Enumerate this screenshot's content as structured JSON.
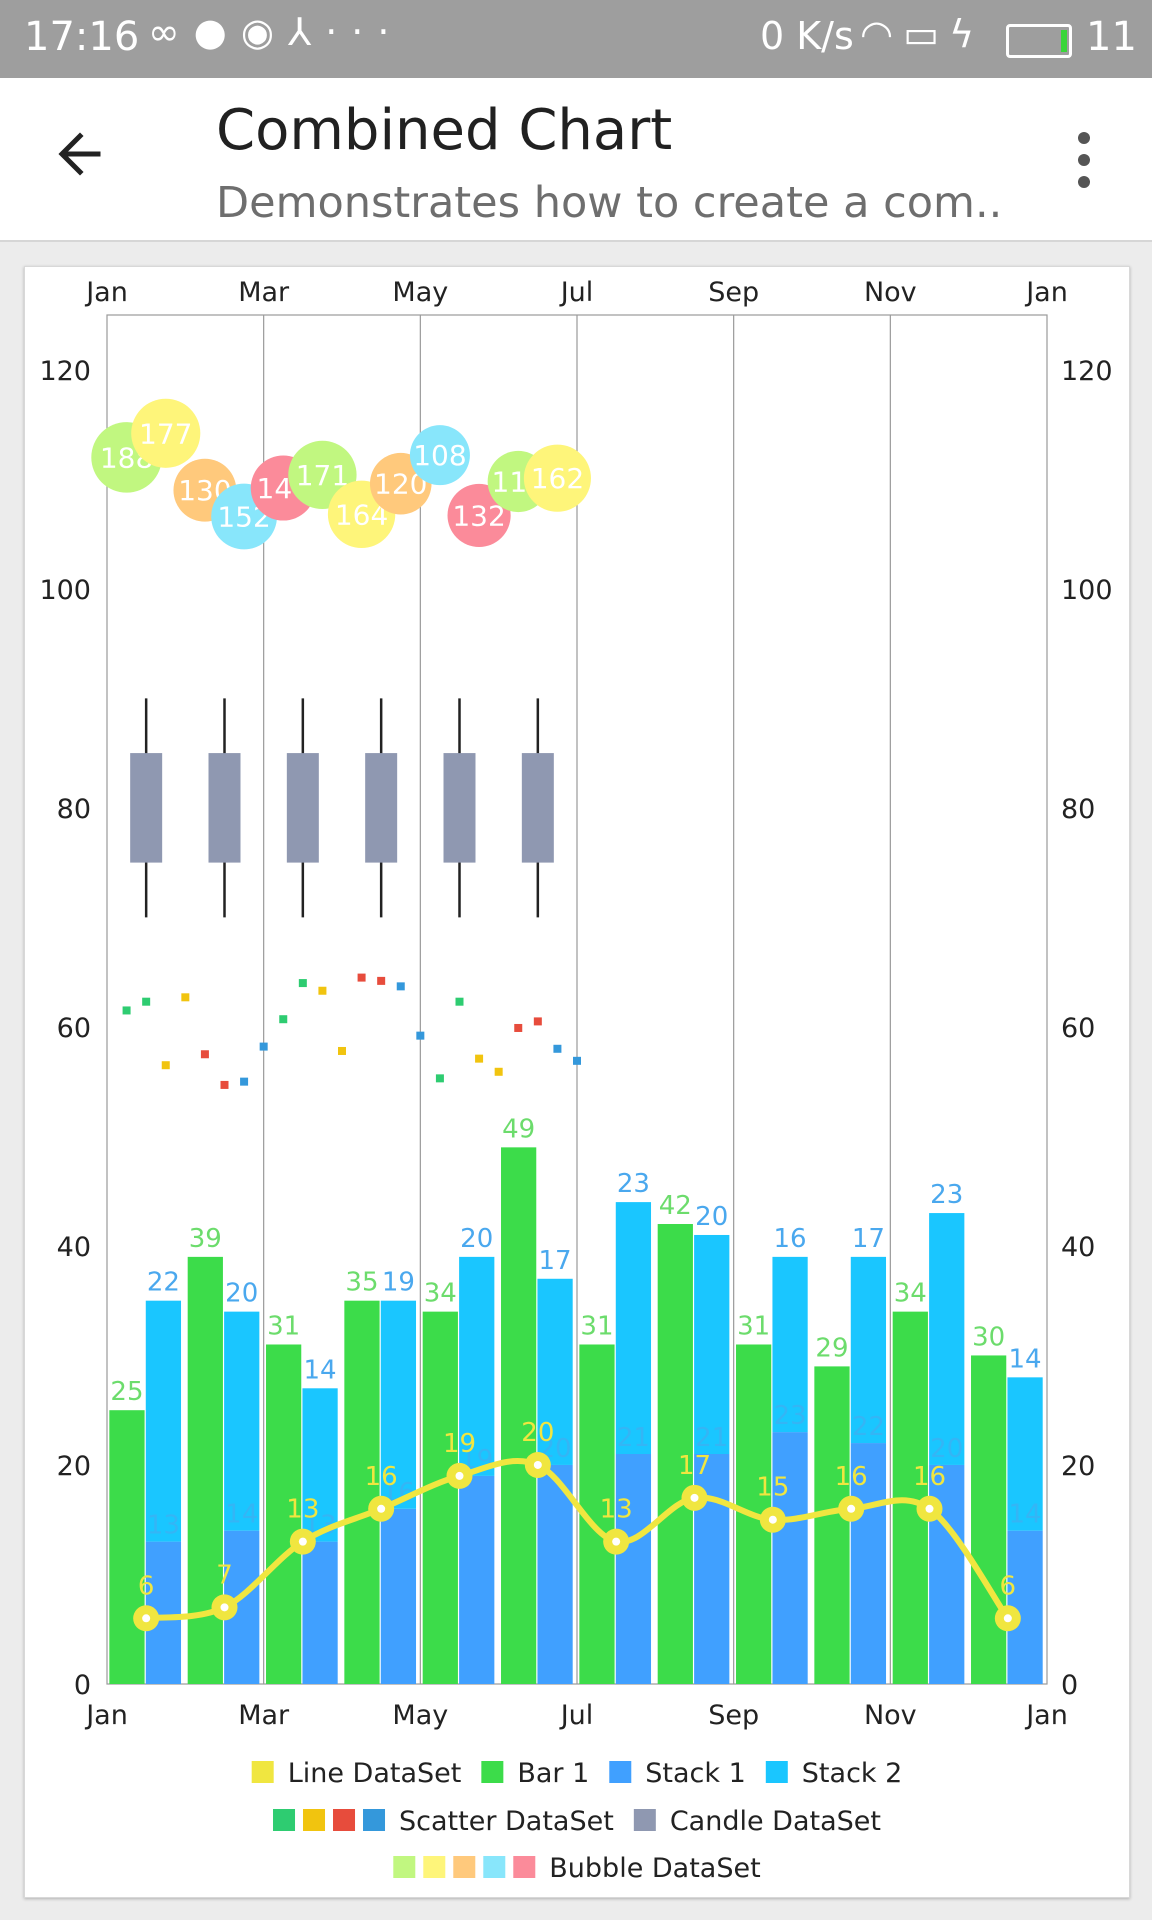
{
  "status_bar": {
    "time": "17:16",
    "left_icons": [
      "infinity-icon",
      "chat-icon",
      "account-icon",
      "share-icon",
      "more-icon"
    ],
    "net_speed": "0 K/s",
    "right_icons": [
      "wifi-icon",
      "sim-icon",
      "charging-icon"
    ],
    "battery_level": "11"
  },
  "app_bar": {
    "title": "Combined Chart",
    "subtitle": "Demonstrates how to create a com..",
    "back_icon": "arrow-back-icon",
    "menu_icon": "overflow-menu-icon"
  },
  "chart_data": {
    "type": "combined",
    "x_ticks": [
      "Jan",
      "Mar",
      "May",
      "Jul",
      "Sep",
      "Nov",
      "Jan"
    ],
    "y_ticks": [
      0,
      20,
      40,
      60,
      80,
      100,
      120
    ],
    "ylim": [
      0,
      125
    ],
    "xlim": [
      0,
      12
    ],
    "bar1": {
      "name": "Bar 1",
      "color": "#3cdc4a",
      "label_color": "#6cdc6c",
      "values": [
        25,
        39,
        31,
        35,
        34,
        49,
        31,
        42,
        31,
        29,
        34,
        30
      ]
    },
    "stack": {
      "names": [
        "Stack 1",
        "Stack 2"
      ],
      "colors": [
        "#40a0ff",
        "#1ac6ff"
      ],
      "label_color": "#4aa8ee",
      "stack1": [
        13,
        14,
        13,
        16,
        19,
        20,
        21,
        21,
        23,
        22,
        20,
        14
      ],
      "stack2": [
        22,
        20,
        14,
        19,
        20,
        17,
        23,
        20,
        16,
        17,
        23,
        14
      ]
    },
    "line": {
      "name": "Line DataSet",
      "color": "#f0e640",
      "values": [
        6,
        7,
        13,
        16,
        19,
        20,
        13,
        17,
        15,
        16,
        16,
        6
      ]
    },
    "scatter": {
      "name": "Scatter DataSet",
      "colors": [
        "#2ecc71",
        "#f1c40f",
        "#e74c3c",
        "#3498db"
      ],
      "points": [
        {
          "x": 0.25,
          "y": 61.5,
          "c": 0
        },
        {
          "x": 0.5,
          "y": 62.3,
          "c": 0
        },
        {
          "x": 0.75,
          "y": 56.5,
          "c": 1
        },
        {
          "x": 1.0,
          "y": 62.7,
          "c": 1
        },
        {
          "x": 1.25,
          "y": 57.5,
          "c": 2
        },
        {
          "x": 1.5,
          "y": 54.7,
          "c": 2
        },
        {
          "x": 1.75,
          "y": 55.0,
          "c": 3
        },
        {
          "x": 2.0,
          "y": 58.2,
          "c": 3
        },
        {
          "x": 2.25,
          "y": 60.7,
          "c": 0
        },
        {
          "x": 2.5,
          "y": 64.0,
          "c": 0
        },
        {
          "x": 2.75,
          "y": 63.3,
          "c": 1
        },
        {
          "x": 3.0,
          "y": 57.8,
          "c": 1
        },
        {
          "x": 3.25,
          "y": 64.5,
          "c": 2
        },
        {
          "x": 3.5,
          "y": 64.2,
          "c": 2
        },
        {
          "x": 3.75,
          "y": 63.7,
          "c": 3
        },
        {
          "x": 4.0,
          "y": 59.2,
          "c": 3
        },
        {
          "x": 4.25,
          "y": 55.3,
          "c": 0
        },
        {
          "x": 4.5,
          "y": 62.3,
          "c": 0
        },
        {
          "x": 4.75,
          "y": 57.1,
          "c": 1
        },
        {
          "x": 5.0,
          "y": 55.9,
          "c": 1
        },
        {
          "x": 5.25,
          "y": 59.9,
          "c": 2
        },
        {
          "x": 5.5,
          "y": 60.5,
          "c": 2
        },
        {
          "x": 5.75,
          "y": 58.0,
          "c": 3
        },
        {
          "x": 6.0,
          "y": 56.9,
          "c": 3
        }
      ]
    },
    "candle": {
      "name": "Candle DataSet",
      "color": "#8f98b1",
      "shadow_color": "#222222",
      "x": [
        0.5,
        1.5,
        2.5,
        3.5,
        4.5,
        5.5
      ],
      "open": 85,
      "close": 75,
      "high": 90,
      "low": 70
    },
    "bubbles": {
      "name": "Bubble DataSet",
      "colors": [
        "#c1f780",
        "#fef57a",
        "#ffc97c",
        "#88e6fb",
        "#fb8b9a"
      ],
      "points": [
        {
          "x": 0.25,
          "y": 112.0,
          "label": "188",
          "c": 0
        },
        {
          "x": 0.75,
          "y": 114.2,
          "label": "177",
          "c": 1
        },
        {
          "x": 1.25,
          "y": 109.0,
          "label": "130",
          "c": 2
        },
        {
          "x": 1.75,
          "y": 106.6,
          "label": "152",
          "c": 3
        },
        {
          "x": 2.25,
          "y": 109.2,
          "label": "146",
          "c": 4
        },
        {
          "x": 2.75,
          "y": 110.4,
          "label": "171",
          "c": 0
        },
        {
          "x": 3.25,
          "y": 106.8,
          "label": "164",
          "c": 1
        },
        {
          "x": 3.75,
          "y": 109.6,
          "label": "120",
          "c": 2
        },
        {
          "x": 4.25,
          "y": 112.2,
          "label": "108",
          "c": 3
        },
        {
          "x": 4.75,
          "y": 106.7,
          "label": "132",
          "c": 4
        },
        {
          "x": 5.25,
          "y": 109.8,
          "label": "117",
          "c": 0
        },
        {
          "x": 5.75,
          "y": 110.1,
          "label": "162",
          "c": 1
        }
      ]
    },
    "legend": {
      "position": "bottom-center",
      "rows": [
        [
          {
            "label": "Line DataSet",
            "colors": [
              "#f0e640"
            ]
          },
          {
            "label": "Bar 1",
            "colors": [
              "#3cdc4a"
            ]
          },
          {
            "label": "Stack 1",
            "colors": [
              "#40a0ff"
            ]
          },
          {
            "label": "Stack 2",
            "colors": [
              "#1ac6ff"
            ]
          }
        ],
        [
          {
            "label": "Scatter DataSet",
            "colors": [
              "#2ecc71",
              "#f1c40f",
              "#e74c3c",
              "#3498db"
            ]
          },
          {
            "label": "Candle DataSet",
            "colors": [
              "#8f98b1"
            ]
          }
        ],
        [
          {
            "label": "Bubble DataSet",
            "colors": [
              "#c1f780",
              "#fef57a",
              "#ffc97c",
              "#88e6fb",
              "#fb8b9a"
            ]
          }
        ]
      ]
    }
  }
}
